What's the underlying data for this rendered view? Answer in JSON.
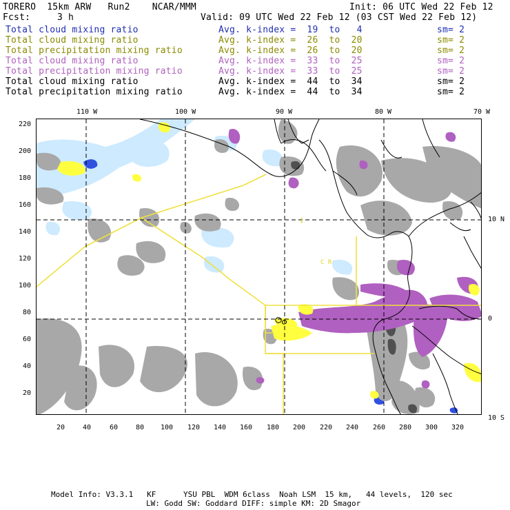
{
  "header": {
    "model": "TORERO  15km ARW   Run2    NCAR/MMM",
    "init": "Init: 06 UTC Wed 22 Feb 12",
    "fcst_label": "Fcst:",
    "fcst_value": "3 h",
    "valid": "Valid: 09 UTC Wed 22 Feb 12 (03 CST Wed 22 Feb 12)"
  },
  "legend": [
    {
      "field": "Total cloud mixing ratio",
      "avg": "Avg. k-index =  19  to   4",
      "sm": "sm= 2",
      "color": "#1f2fb0"
    },
    {
      "field": "Total cloud mixing ratio",
      "avg": "Avg. k-index =  26  to  20",
      "sm": "sm= 2",
      "color": "#8a8a00"
    },
    {
      "field": "Total precipitation mixing ratio",
      "avg": "Avg. k-index =  26  to  20",
      "sm": "sm= 2",
      "color": "#8a8a00"
    },
    {
      "field": "Total cloud mixing ratio",
      "avg": "Avg. k-index =  33  to  25",
      "sm": "sm= 2",
      "color": "#b060c0"
    },
    {
      "field": "Total precipitation mixing ratio",
      "avg": "Avg. k-index =  33  to  25",
      "sm": "sm= 2",
      "color": "#b060c0"
    },
    {
      "field": "Total cloud mixing ratio",
      "avg": "Avg. k-index =  44  to  34",
      "sm": "sm= 2",
      "color": "#000000"
    },
    {
      "field": "Total precipitation mixing ratio",
      "avg": "Avg. k-index =  44  to  34",
      "sm": "sm= 2",
      "color": "#000000"
    }
  ],
  "map": {
    "lon_labels": [
      "110 W",
      "100 W",
      "90 W",
      "80 W",
      "70 W"
    ],
    "lat_labels": [
      "10 N",
      "0",
      "10 S"
    ],
    "y_ticks": [
      "220",
      "200",
      "180",
      "160",
      "140",
      "120",
      "100",
      "80",
      "60",
      "40",
      "20"
    ],
    "x_ticks": [
      "20",
      "40",
      "60",
      "80",
      "100",
      "120",
      "140",
      "160",
      "180",
      "200",
      "220",
      "240",
      "260",
      "280",
      "300",
      "320"
    ],
    "annotations": [
      "I",
      "C R"
    ],
    "colors": {
      "gray": "#a0a0a0",
      "dark_gray": "#505050",
      "purple": "#b060c0",
      "yellow": "#ffff40",
      "light_blue": "#c8e8ff",
      "blue": "#3050e0",
      "track": "#f0e040"
    }
  },
  "footer": {
    "line1": "Model Info: V3.3.1   KF      YSU PBL  WDM 6class  Noah LSM  15 km,   44 levels,  120 sec",
    "line2": "LW: Godd SW: Goddard DIFF: simple KM: 2D Smagor"
  }
}
